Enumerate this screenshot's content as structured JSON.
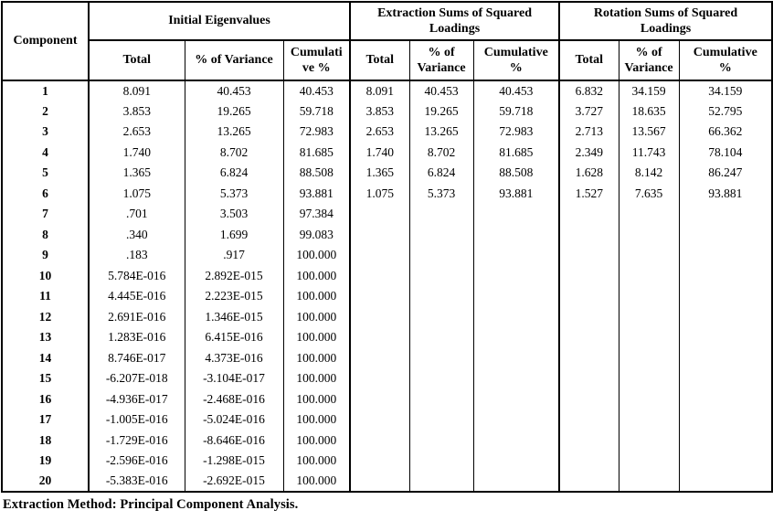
{
  "table": {
    "corner_header": "Component",
    "groups": [
      {
        "label": "Initial Eigenvalues",
        "cols": [
          "Total",
          "% of Variance",
          "Cumulati\nve %"
        ]
      },
      {
        "label": "Extraction Sums of Squared\nLoadings",
        "cols": [
          "Total",
          "% of\nVariance",
          "Cumulative\n%"
        ]
      },
      {
        "label": "Rotation Sums of Squared\nLoadings",
        "cols": [
          "Total",
          "% of\nVariance",
          "Cumulative\n%"
        ]
      }
    ],
    "rows": [
      {
        "component": "1",
        "cells": [
          "8.091",
          "40.453",
          "40.453",
          "8.091",
          "40.453",
          "40.453",
          "6.832",
          "34.159",
          "34.159"
        ]
      },
      {
        "component": "2",
        "cells": [
          "3.853",
          "19.265",
          "59.718",
          "3.853",
          "19.265",
          "59.718",
          "3.727",
          "18.635",
          "52.795"
        ]
      },
      {
        "component": "3",
        "cells": [
          "2.653",
          "13.265",
          "72.983",
          "2.653",
          "13.265",
          "72.983",
          "2.713",
          "13.567",
          "66.362"
        ]
      },
      {
        "component": "4",
        "cells": [
          "1.740",
          "8.702",
          "81.685",
          "1.740",
          "8.702",
          "81.685",
          "2.349",
          "11.743",
          "78.104"
        ]
      },
      {
        "component": "5",
        "cells": [
          "1.365",
          "6.824",
          "88.508",
          "1.365",
          "6.824",
          "88.508",
          "1.628",
          "8.142",
          "86.247"
        ]
      },
      {
        "component": "6",
        "cells": [
          "1.075",
          "5.373",
          "93.881",
          "1.075",
          "5.373",
          "93.881",
          "1.527",
          "7.635",
          "93.881"
        ]
      },
      {
        "component": "7",
        "cells": [
          ".701",
          "3.503",
          "97.384",
          "",
          "",
          "",
          "",
          "",
          ""
        ]
      },
      {
        "component": "8",
        "cells": [
          ".340",
          "1.699",
          "99.083",
          "",
          "",
          "",
          "",
          "",
          ""
        ]
      },
      {
        "component": "9",
        "cells": [
          ".183",
          ".917",
          "100.000",
          "",
          "",
          "",
          "",
          "",
          ""
        ]
      },
      {
        "component": "10",
        "cells": [
          "5.784E-016",
          "2.892E-015",
          "100.000",
          "",
          "",
          "",
          "",
          "",
          ""
        ]
      },
      {
        "component": "11",
        "cells": [
          "4.445E-016",
          "2.223E-015",
          "100.000",
          "",
          "",
          "",
          "",
          "",
          ""
        ]
      },
      {
        "component": "12",
        "cells": [
          "2.691E-016",
          "1.346E-015",
          "100.000",
          "",
          "",
          "",
          "",
          "",
          ""
        ]
      },
      {
        "component": "13",
        "cells": [
          "1.283E-016",
          "6.415E-016",
          "100.000",
          "",
          "",
          "",
          "",
          "",
          ""
        ]
      },
      {
        "component": "14",
        "cells": [
          "8.746E-017",
          "4.373E-016",
          "100.000",
          "",
          "",
          "",
          "",
          "",
          ""
        ]
      },
      {
        "component": "15",
        "cells": [
          "-6.207E-018",
          "-3.104E-017",
          "100.000",
          "",
          "",
          "",
          "",
          "",
          ""
        ]
      },
      {
        "component": "16",
        "cells": [
          "-4.936E-017",
          "-2.468E-016",
          "100.000",
          "",
          "",
          "",
          "",
          "",
          ""
        ]
      },
      {
        "component": "17",
        "cells": [
          "-1.005E-016",
          "-5.024E-016",
          "100.000",
          "",
          "",
          "",
          "",
          "",
          ""
        ]
      },
      {
        "component": "18",
        "cells": [
          "-1.729E-016",
          "-8.646E-016",
          "100.000",
          "",
          "",
          "",
          "",
          "",
          ""
        ]
      },
      {
        "component": "19",
        "cells": [
          "-2.596E-016",
          "-1.298E-015",
          "100.000",
          "",
          "",
          "",
          "",
          "",
          ""
        ]
      },
      {
        "component": "20",
        "cells": [
          "-5.383E-016",
          "-2.692E-015",
          "100.000",
          "",
          "",
          "",
          "",
          "",
          ""
        ]
      }
    ],
    "footer": "Extraction Method: Principal Component Analysis."
  }
}
